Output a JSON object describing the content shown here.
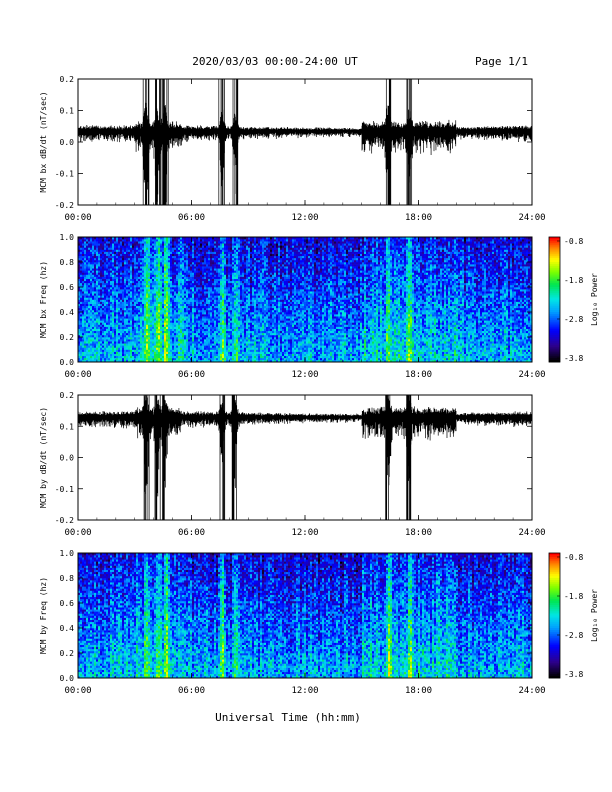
{
  "header": {
    "title": "2020/03/03  00:00-24:00 UT",
    "page": "Page 1/1"
  },
  "footer": {
    "xlabel": "Universal Time (hh:mm)"
  },
  "chart_data": [
    {
      "type": "line",
      "ylabel": "MCM bx dB/dt (nT/sec)",
      "xlim": [
        0,
        24
      ],
      "ylim": [
        -0.2,
        0.2
      ],
      "xticks": [
        "00:00",
        "06:00",
        "12:00",
        "18:00",
        "24:00"
      ],
      "yticks": [
        "-0.2",
        "-0.1",
        "0.0",
        "0.1",
        "0.2"
      ],
      "series": [
        {
          "baseline": 0.035,
          "color": "#000000"
        }
      ]
    },
    {
      "type": "heatmap",
      "ylabel": "MCM bx Freq (hz)",
      "xlim": [
        0,
        24
      ],
      "ylim": [
        0.0,
        1.0
      ],
      "xticks": [
        "00:00",
        "06:00",
        "12:00",
        "18:00",
        "24:00"
      ],
      "yticks": [
        "0.0",
        "0.2",
        "0.4",
        "0.6",
        "0.8",
        "1.0"
      ],
      "colorbar": {
        "label": "Log₁₀ Power",
        "range": [
          -3.8,
          -0.8
        ],
        "ticks": [
          "-0.8",
          "-1.8",
          "-2.8",
          "-3.8"
        ]
      }
    },
    {
      "type": "line",
      "ylabel": "MCM by dB/dt (nT/sec)",
      "xlim": [
        0,
        24
      ],
      "ylim": [
        -0.2,
        0.2
      ],
      "xticks": [
        "00:00",
        "06:00",
        "12:00",
        "18:00",
        "24:00"
      ],
      "yticks": [
        "-0.2",
        "-0.1",
        "0.0",
        "0.1",
        "0.2"
      ],
      "series": [
        {
          "baseline": 0.13,
          "color": "#000000"
        }
      ]
    },
    {
      "type": "heatmap",
      "ylabel": "MCM by Freq (hz)",
      "xlim": [
        0,
        24
      ],
      "ylim": [
        0.0,
        1.0
      ],
      "xticks": [
        "00:00",
        "06:00",
        "12:00",
        "18:00",
        "24:00"
      ],
      "yticks": [
        "0.0",
        "0.2",
        "0.4",
        "0.6",
        "0.8",
        "1.0"
      ],
      "colorbar": {
        "label": "Log₁₀ Power",
        "range": [
          -3.8,
          -0.8
        ],
        "ticks": [
          "-0.8",
          "-1.8",
          "-2.8",
          "-3.8"
        ]
      }
    }
  ],
  "activity_bursts_ut_hours": [
    3.6,
    4.2,
    4.6,
    7.6,
    8.3,
    17.5,
    16.4
  ]
}
